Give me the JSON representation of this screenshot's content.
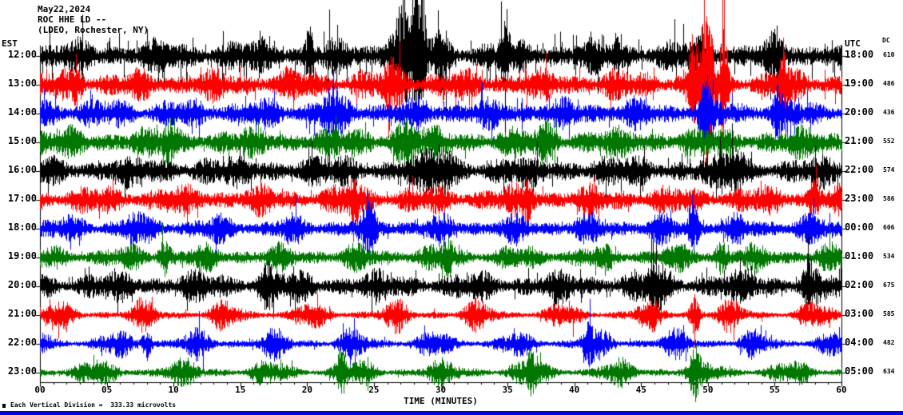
{
  "header": {
    "date": "May22,2024",
    "station": "ROC HHE LD --",
    "network": "(LDEO, Rochester, NY)"
  },
  "axes": {
    "left_label": "EST",
    "right_label": "UTC",
    "dc_label": "DC",
    "x_label": "TIME (MINUTES)",
    "x_ticks": [
      "00",
      "05",
      "10",
      "15",
      "20",
      "25",
      "30",
      "35",
      "40",
      "45",
      "50",
      "55",
      "60"
    ]
  },
  "footer": {
    "note": "Each Vertical Division =  333.33 microvolts"
  },
  "chart_data": {
    "type": "line",
    "subtype": "seismogram-helicorder",
    "title": "ROC HHE LD helicorder, May 22 2024",
    "x_unit": "minutes",
    "x_range": [
      0,
      60
    ],
    "x_tick_step": 5,
    "microvolts_per_division": 333.33,
    "trace_colors": [
      "#000000",
      "#ff0000",
      "#0000ff",
      "#007700"
    ],
    "rows": [
      {
        "est": "12:00",
        "utc": "18:00",
        "dc": 610,
        "color": "#000000",
        "amp": 26,
        "base": 0.45,
        "mod": 0.55,
        "peak": 2,
        "period": 6.5,
        "phase": 0.3,
        "spike": [
          0.06,
          2.6
        ],
        "bursts": [
          [
            20.2,
            0.3,
            32
          ],
          [
            27.2,
            1.0,
            55
          ],
          [
            28.4,
            0.45,
            90
          ],
          [
            30,
            0.5,
            30
          ],
          [
            34.8,
            0.35,
            28
          ],
          [
            43,
            0.3,
            20
          ],
          [
            49.6,
            0.3,
            26
          ],
          [
            55,
            0.3,
            18
          ]
        ]
      },
      {
        "est": "13:00",
        "utc": "19:00",
        "dc": 486,
        "color": "#ff0000",
        "amp": 24,
        "base": 0.45,
        "mod": 0.55,
        "peak": 2,
        "period": 6.1,
        "phase": 1.1,
        "spike": [
          0.04,
          2.2
        ],
        "bursts": [
          [
            2.8,
            0.4,
            18
          ],
          [
            26.5,
            0.8,
            18
          ],
          [
            48.8,
            0.3,
            45
          ],
          [
            49.9,
            0.5,
            95
          ],
          [
            51.2,
            0.3,
            70
          ],
          [
            55.6,
            0.3,
            45
          ]
        ]
      },
      {
        "est": "14:00",
        "utc": "20:00",
        "dc": 436,
        "color": "#0000ff",
        "amp": 24,
        "base": 0.45,
        "mod": 0.55,
        "peak": 2,
        "period": 5.7,
        "phase": 2.0,
        "spike": [
          0.03,
          2.0
        ],
        "bursts": [
          [
            21.8,
            0.6,
            20
          ],
          [
            49.8,
            0.35,
            40
          ],
          [
            55.2,
            0.3,
            22
          ]
        ]
      },
      {
        "est": "15:00",
        "utc": "21:00",
        "dc": 552,
        "color": "#007700",
        "amp": 24,
        "base": 0.45,
        "mod": 0.55,
        "peak": 2,
        "period": 6.9,
        "phase": 0.8,
        "spike": [
          0.03,
          2.0
        ],
        "bursts": [
          [
            9.8,
            0.5,
            18
          ],
          [
            27.2,
            0.8,
            22
          ],
          [
            38,
            0.5,
            16
          ]
        ]
      },
      {
        "est": "16:00",
        "utc": "22:00",
        "dc": 574,
        "color": "#000000",
        "amp": 25,
        "base": 0.45,
        "mod": 0.55,
        "peak": 2,
        "period": 7.3,
        "phase": 1.7,
        "spike": [
          0.04,
          2.0
        ],
        "bursts": [
          [
            30,
            1.2,
            16
          ],
          [
            52,
            0.7,
            18
          ]
        ]
      },
      {
        "est": "17:00",
        "utc": "23:00",
        "dc": 586,
        "color": "#ff0000",
        "amp": 23,
        "base": 0.42,
        "mod": 0.58,
        "peak": 2,
        "period": 6.2,
        "phase": 2.6,
        "spike": [
          0.02,
          1.9
        ],
        "bursts": [
          [
            23.5,
            0.5,
            20
          ],
          [
            36.5,
            0.4,
            18
          ],
          [
            58,
            0.35,
            20
          ]
        ]
      },
      {
        "est": "18:00",
        "utc": "00:00",
        "dc": 606,
        "color": "#0000ff",
        "amp": 23,
        "base": 0.38,
        "mod": 0.62,
        "peak": 3,
        "period": 5.6,
        "phase": 0.5,
        "spike": [
          0.02,
          1.9
        ],
        "bursts": [
          [
            7,
            0.4,
            16
          ],
          [
            24.6,
            0.4,
            20
          ],
          [
            48.9,
            0.35,
            22
          ]
        ]
      },
      {
        "est": "19:00",
        "utc": "01:00",
        "dc": 534,
        "color": "#007700",
        "amp": 21,
        "base": 0.38,
        "mod": 0.62,
        "peak": 3,
        "period": 5.9,
        "phase": 1.4,
        "spike": [
          0.02,
          1.9
        ],
        "bursts": [
          [
            9.3,
            0.4,
            18
          ],
          [
            30.5,
            0.4,
            16
          ],
          [
            51,
            0.4,
            16
          ]
        ]
      },
      {
        "est": "20:00",
        "utc": "02:00",
        "dc": 675,
        "color": "#000000",
        "amp": 24,
        "base": 0.42,
        "mod": 0.58,
        "peak": 2,
        "period": 6.7,
        "phase": 2.2,
        "spike": [
          0.04,
          2.0
        ],
        "bursts": [
          [
            17,
            0.7,
            16
          ],
          [
            46,
            0.7,
            18
          ],
          [
            57.5,
            0.4,
            22
          ]
        ]
      },
      {
        "est": "21:00",
        "utc": "03:00",
        "dc": 585,
        "color": "#ff0000",
        "amp": 25,
        "base": 0.18,
        "mod": 0.82,
        "peak": 6,
        "period": 6.3,
        "phase": 0.9,
        "spike": [
          0.02,
          1.9
        ],
        "bursts": [
          [
            49,
            0.35,
            26
          ]
        ]
      },
      {
        "est": "22:00",
        "utc": "04:00",
        "dc": 482,
        "color": "#0000ff",
        "amp": 24,
        "base": 0.2,
        "mod": 0.8,
        "peak": 5,
        "period": 6.0,
        "phase": 1.8,
        "spike": [
          0.02,
          1.9
        ],
        "bursts": [
          [
            8,
            0.35,
            20
          ],
          [
            41,
            0.35,
            18
          ]
        ]
      },
      {
        "est": "23:00",
        "utc": "05:00",
        "dc": 634,
        "color": "#007700",
        "amp": 21,
        "base": 0.22,
        "mod": 0.78,
        "peak": 4,
        "period": 6.5,
        "phase": 2.7,
        "spike": [
          0.02,
          1.9
        ],
        "bursts": [
          [
            22.5,
            0.35,
            26
          ],
          [
            36.8,
            0.35,
            22
          ],
          [
            49,
            0.35,
            20
          ]
        ]
      }
    ]
  }
}
